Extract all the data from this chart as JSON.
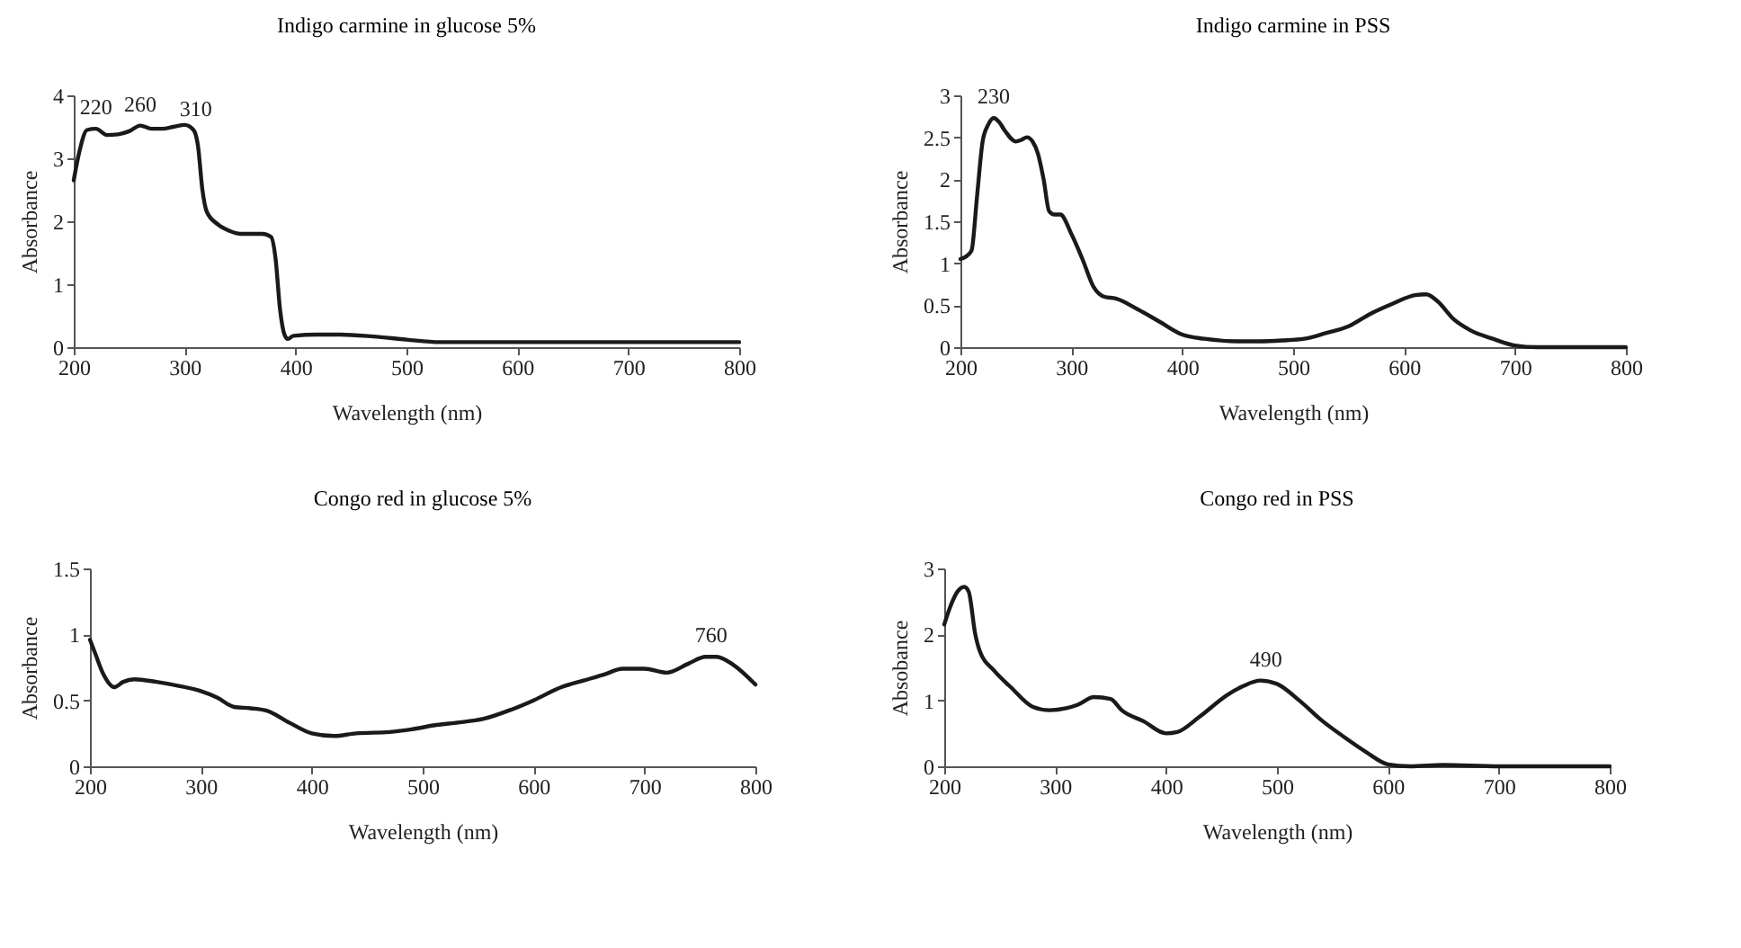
{
  "chart_data": [
    {
      "type": "line",
      "title": "Indigo carmine in glucose 5%",
      "xlabel": "Wavelength (nm)",
      "ylabel": "Absorbance",
      "color": "#1a1a1a",
      "xlim": [
        200,
        800
      ],
      "xticks": [
        200,
        300,
        400,
        500,
        600,
        700,
        800
      ],
      "ylim": [
        0,
        4
      ],
      "yticks": [
        0,
        1,
        2,
        3,
        4
      ],
      "x": [
        200,
        205,
        212,
        220,
        230,
        240,
        250,
        260,
        270,
        280,
        290,
        300,
        308,
        312,
        316,
        320,
        330,
        340,
        350,
        370,
        378,
        382,
        386,
        390,
        393,
        398,
        420,
        440,
        470,
        500,
        530,
        600,
        700,
        800
      ],
      "values": [
        2.65,
        3.1,
        3.45,
        3.47,
        3.37,
        3.38,
        3.43,
        3.52,
        3.47,
        3.47,
        3.5,
        3.53,
        3.45,
        3.2,
        2.5,
        2.15,
        1.95,
        1.85,
        1.8,
        1.8,
        1.75,
        1.4,
        0.6,
        0.2,
        0.13,
        0.18,
        0.2,
        0.2,
        0.17,
        0.12,
        0.08,
        0.08,
        0.08,
        0.08
      ],
      "annotations": [
        {
          "text": "220",
          "x": 220,
          "y": 3.47
        },
        {
          "text": "260",
          "x": 260,
          "y": 3.52
        },
        {
          "text": "310",
          "x": 310,
          "y": 3.45
        }
      ]
    },
    {
      "type": "line",
      "title": "Indigo carmine in PSS",
      "xlabel": "Wavelength (nm)",
      "ylabel": "Absorbance",
      "color": "#1a1a1a",
      "xlim": [
        200,
        800
      ],
      "xticks": [
        200,
        300,
        400,
        500,
        600,
        700,
        800
      ],
      "ylim": [
        0,
        3
      ],
      "yticks": [
        0,
        0.5,
        1,
        1.5,
        2,
        2.5,
        3
      ],
      "x": [
        200,
        205,
        210,
        215,
        220,
        225,
        230,
        235,
        240,
        250,
        255,
        260,
        265,
        270,
        275,
        280,
        285,
        290,
        300,
        310,
        320,
        330,
        340,
        360,
        380,
        400,
        420,
        450,
        470,
        490,
        510,
        530,
        550,
        570,
        590,
        610,
        620,
        630,
        645,
        660,
        680,
        700,
        720,
        800
      ],
      "values": [
        1.05,
        1.08,
        1.15,
        1.8,
        2.45,
        2.65,
        2.73,
        2.68,
        2.58,
        2.45,
        2.47,
        2.5,
        2.45,
        2.3,
        2.0,
        1.62,
        1.58,
        1.58,
        1.35,
        1.05,
        0.72,
        0.6,
        0.58,
        0.45,
        0.3,
        0.15,
        0.1,
        0.07,
        0.07,
        0.08,
        0.1,
        0.17,
        0.25,
        0.4,
        0.52,
        0.62,
        0.63,
        0.55,
        0.33,
        0.2,
        0.1,
        0.02,
        0,
        0
      ],
      "annotations": [
        {
          "text": "230",
          "x": 230,
          "y": 2.73
        }
      ]
    },
    {
      "type": "line",
      "title": "Congo red in glucose 5%",
      "xlabel": "Wavelength (nm)",
      "ylabel": "Absorbance",
      "color": "#1a1a1a",
      "xlim": [
        200,
        800
      ],
      "xticks": [
        200,
        300,
        400,
        500,
        600,
        700,
        800
      ],
      "ylim": [
        0,
        1.5
      ],
      "yticks": [
        0,
        0.5,
        1,
        1.5
      ],
      "x": [
        200,
        205,
        212,
        222,
        230,
        240,
        260,
        280,
        300,
        315,
        330,
        345,
        360,
        380,
        400,
        420,
        440,
        470,
        490,
        510,
        530,
        555,
        580,
        600,
        625,
        645,
        665,
        680,
        700,
        720,
        740,
        755,
        765,
        780,
        800
      ],
      "values": [
        0.96,
        0.85,
        0.7,
        0.6,
        0.64,
        0.66,
        0.64,
        0.61,
        0.57,
        0.52,
        0.45,
        0.44,
        0.42,
        0.33,
        0.25,
        0.23,
        0.25,
        0.26,
        0.28,
        0.31,
        0.33,
        0.36,
        0.43,
        0.5,
        0.6,
        0.65,
        0.7,
        0.74,
        0.74,
        0.71,
        0.78,
        0.83,
        0.83,
        0.77,
        0.62
      ],
      "annotations": [
        {
          "text": "760",
          "x": 760,
          "y": 0.83
        }
      ]
    },
    {
      "type": "line",
      "title": "Congo red in PSS",
      "xlabel": "Wavelength (nm)",
      "ylabel": "Absobance",
      "color": "#1a1a1a",
      "xlim": [
        200,
        800
      ],
      "xticks": [
        200,
        300,
        400,
        500,
        600,
        700,
        800
      ],
      "ylim": [
        0,
        3
      ],
      "yticks": [
        0,
        1,
        2,
        3
      ],
      "x": [
        200,
        205,
        212,
        218,
        222,
        228,
        232,
        245,
        260,
        280,
        295,
        310,
        320,
        335,
        350,
        360,
        380,
        400,
        410,
        430,
        455,
        470,
        485,
        500,
        520,
        540,
        560,
        580,
        600,
        620,
        650,
        700,
        800
      ],
      "values": [
        2.15,
        2.4,
        2.65,
        2.72,
        2.65,
        2.0,
        1.75,
        1.45,
        1.2,
        0.9,
        0.85,
        0.88,
        0.93,
        1.05,
        1.02,
        0.85,
        0.68,
        0.5,
        0.52,
        0.75,
        1.08,
        1.22,
        1.3,
        1.25,
        1.0,
        0.7,
        0.45,
        0.22,
        0.03,
        0,
        0.02,
        0,
        0
      ],
      "annotations": [
        {
          "text": "490",
          "x": 490,
          "y": 1.3
        }
      ]
    }
  ]
}
